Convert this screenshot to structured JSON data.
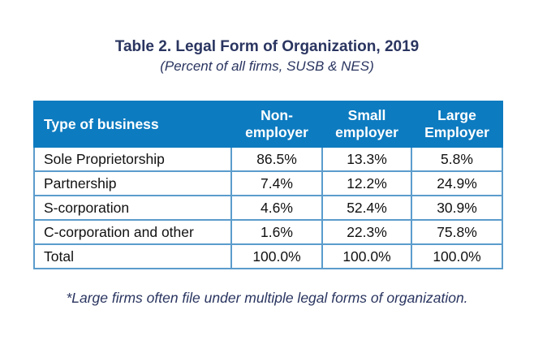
{
  "title": "Table 2. Legal Form of Organization, 2019",
  "subtitle": "(Percent of all firms, SUSB & NES)",
  "table": {
    "headers": [
      {
        "line1": "Type of business",
        "line2": ""
      },
      {
        "line1": "Non-",
        "line2": "employer"
      },
      {
        "line1": "Small",
        "line2": "employer"
      },
      {
        "line1": "Large",
        "line2": "Employer"
      }
    ],
    "rows": [
      [
        "Sole Proprietorship",
        "86.5%",
        "13.3%",
        "5.8%"
      ],
      [
        "Partnership",
        "7.4%",
        "12.2%",
        "24.9%"
      ],
      [
        "S-corporation",
        "4.6%",
        "52.4%",
        "30.9%"
      ],
      [
        "C-corporation and other",
        "1.6%",
        "22.3%",
        "75.8%"
      ],
      [
        "Total",
        "100.0%",
        "100.0%",
        "100.0%"
      ]
    ]
  },
  "footnote": "*Large firms often file under multiple legal forms of organization.",
  "colors": {
    "header_bg": "#0d7bc0",
    "border": "#5b9ccc",
    "title": "#2a3560"
  }
}
